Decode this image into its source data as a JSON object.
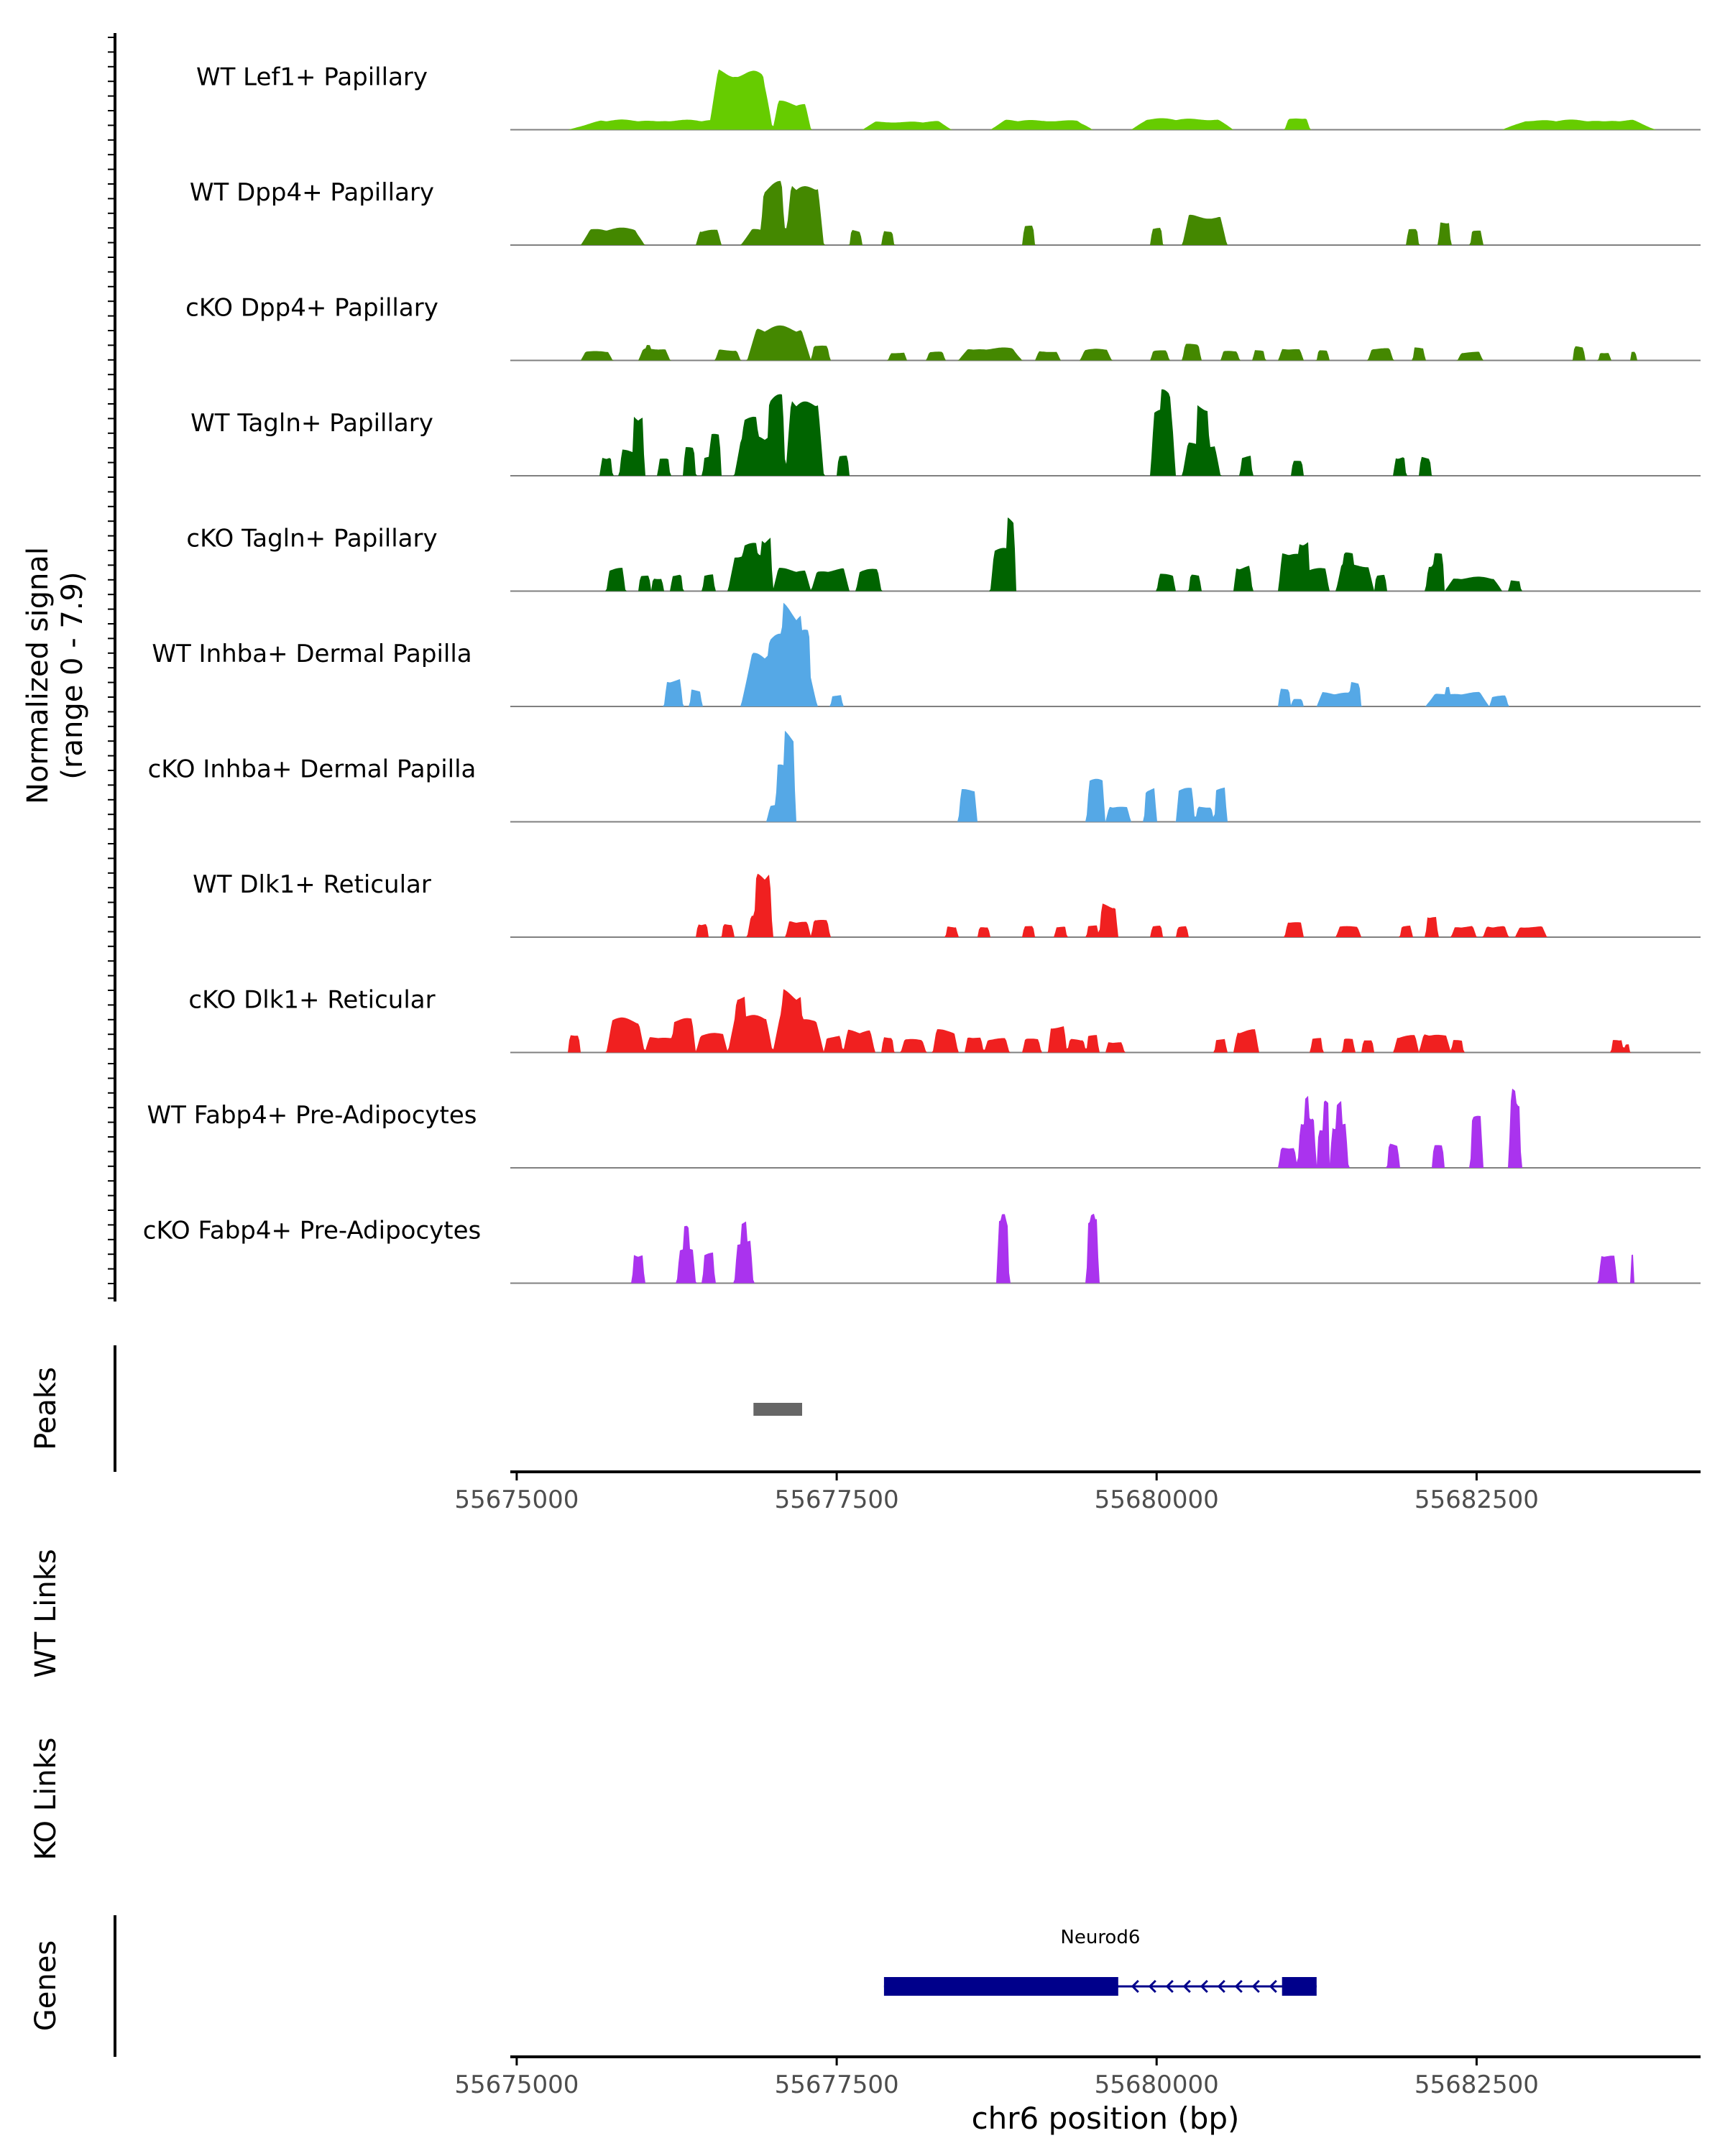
{
  "chart_data": {
    "type": "area",
    "genomic_range": [
      55674950,
      55684250
    ],
    "x_axis_ticks": [
      55675000,
      55677500,
      55680000,
      55682500
    ],
    "x_axis_tick_labels": [
      "55675000",
      "55677500",
      "55680000",
      "55682500"
    ],
    "xlabel": "chr6 position (bp)",
    "ylabel_line1": "Normalized signal",
    "ylabel_line2": "(range 0 - 7.9)",
    "signal_range": [
      0,
      7.9
    ],
    "section_labels": {
      "peaks": "Peaks",
      "wt_links": "WT Links",
      "ko_links": "KO Links",
      "genes": "Genes"
    },
    "series": [
      {
        "name": "WT Lef1+ Papillary",
        "color": "#66cc00",
        "regions": [
          [
            55675400,
            55677100,
            0.35
          ],
          [
            55677700,
            55678400,
            0.3
          ],
          [
            55678700,
            55679500,
            0.35
          ],
          [
            55679800,
            55680600,
            0.4
          ],
          [
            55681000,
            55681200,
            0.45
          ],
          [
            55682700,
            55683900,
            0.35
          ]
        ],
        "peaks": [
          [
            55676500,
            55677000,
            2.2
          ],
          [
            55677000,
            55677300,
            1.0
          ]
        ]
      },
      {
        "name": "WT Dpp4+ Papillary",
        "color": "#448800",
        "regions": [
          [
            55675500,
            55676000,
            0.6
          ],
          [
            55676400,
            55676600,
            0.55
          ],
          [
            55676750,
            55677350,
            0.6
          ],
          [
            55677600,
            55677700,
            0.55
          ],
          [
            55677850,
            55677950,
            0.55
          ],
          [
            55678950,
            55679050,
            0.7
          ],
          [
            55679950,
            55680050,
            0.6
          ],
          [
            55680200,
            55680550,
            1.1
          ],
          [
            55681950,
            55682050,
            0.55
          ],
          [
            55682200,
            55682300,
            0.9
          ],
          [
            55682450,
            55682550,
            0.5
          ]
        ],
        "peaks": [
          [
            55676900,
            55677100,
            2.2
          ],
          [
            55677100,
            55677400,
            2.3
          ]
        ]
      },
      {
        "name": "cKO Dpp4+ Papillary",
        "color": "#448800",
        "regions": [
          [
            55675500,
            55675750,
            0.35
          ],
          [
            55675950,
            55676200,
            0.45
          ],
          [
            55676000,
            55676050,
            0.6
          ],
          [
            55676550,
            55676750,
            0.4
          ],
          [
            55676800,
            55677200,
            0.7
          ],
          [
            55677300,
            55677450,
            0.6
          ],
          [
            55677900,
            55678050,
            0.3
          ],
          [
            55678200,
            55678350,
            0.3
          ],
          [
            55678450,
            55678950,
            0.45
          ],
          [
            55679050,
            55679250,
            0.35
          ],
          [
            55679400,
            55679650,
            0.4
          ],
          [
            55679950,
            55680100,
            0.35
          ],
          [
            55680200,
            55680350,
            0.6
          ],
          [
            55680500,
            55680650,
            0.35
          ],
          [
            55680750,
            55680850,
            0.35
          ],
          [
            55680950,
            55681150,
            0.45
          ],
          [
            55681250,
            55681350,
            0.35
          ],
          [
            55681650,
            55681850,
            0.45
          ],
          [
            55682000,
            55682100,
            0.45
          ],
          [
            55682350,
            55682550,
            0.3
          ],
          [
            55683250,
            55683350,
            0.5
          ],
          [
            55683450,
            55683550,
            0.3
          ],
          [
            55683700,
            55683750,
            0.3
          ]
        ],
        "peaks": [
          [
            55676800,
            55677300,
            1.2
          ]
        ]
      },
      {
        "name": "WT Tagln+ Papillary",
        "color": "#006400",
        "regions": [
          [
            55675650,
            55675750,
            0.7
          ],
          [
            55675800,
            55675950,
            0.9
          ],
          [
            55676100,
            55676200,
            0.7
          ],
          [
            55676300,
            55676400,
            1.0
          ],
          [
            55676450,
            55676550,
            0.7
          ],
          [
            55676700,
            55677050,
            1.5
          ],
          [
            55677200,
            55677400,
            1.6
          ],
          [
            55677500,
            55677600,
            0.7
          ],
          [
            55679950,
            55680150,
            2.3
          ],
          [
            55680200,
            55680500,
            1.2
          ],
          [
            55680650,
            55680750,
            0.7
          ],
          [
            55681050,
            55681150,
            0.6
          ],
          [
            55681850,
            55681950,
            0.7
          ],
          [
            55682050,
            55682150,
            0.7
          ]
        ],
        "peaks": [
          [
            55675900,
            55676000,
            2.3
          ],
          [
            55676500,
            55676600,
            1.5
          ],
          [
            55676750,
            55676900,
            2.2
          ],
          [
            55676950,
            55677100,
            2.8
          ],
          [
            55677100,
            55677400,
            2.9
          ],
          [
            55680020,
            55680120,
            3.0
          ],
          [
            55680300,
            55680420,
            2.7
          ]
        ]
      },
      {
        "name": "cKO Tagln+ Papillary",
        "color": "#006400",
        "regions": [
          [
            55675700,
            55675850,
            0.8
          ],
          [
            55675950,
            55676050,
            0.6
          ],
          [
            55676050,
            55676150,
            0.5
          ],
          [
            55676200,
            55676300,
            0.6
          ],
          [
            55676450,
            55676550,
            0.6
          ],
          [
            55676650,
            55677000,
            1.4
          ],
          [
            55677000,
            55677300,
            0.8
          ],
          [
            55677300,
            55677600,
            0.8
          ],
          [
            55677650,
            55677850,
            0.8
          ],
          [
            55678700,
            55678900,
            1.5
          ],
          [
            55680000,
            55680150,
            0.6
          ],
          [
            55680250,
            55680350,
            0.6
          ],
          [
            55680600,
            55680750,
            0.9
          ],
          [
            55680950,
            55681150,
            1.5
          ],
          [
            55681150,
            55681350,
            0.8
          ],
          [
            55681400,
            55681700,
            1.0
          ],
          [
            55681700,
            55681800,
            0.6
          ],
          [
            55682100,
            55682250,
            1.0
          ],
          [
            55682250,
            55682700,
            0.5
          ],
          [
            55682750,
            55682850,
            0.4
          ]
        ],
        "peaks": [
          [
            55676750,
            55676900,
            1.8
          ],
          [
            55676900,
            55677000,
            2.0
          ],
          [
            55678820,
            55678900,
            2.6
          ],
          [
            55681100,
            55681200,
            1.9
          ],
          [
            55681450,
            55681550,
            1.4
          ],
          [
            55682150,
            55682250,
            1.5
          ]
        ]
      },
      {
        "name": "WT Inhba+ Dermal Papilla",
        "color": "#55a8e6",
        "regions": [
          [
            55676150,
            55676300,
            1.0
          ],
          [
            55676350,
            55676450,
            0.6
          ],
          [
            55676750,
            55677350,
            2.0
          ],
          [
            55677450,
            55677550,
            0.4
          ],
          [
            55680950,
            55681050,
            0.7
          ],
          [
            55681050,
            55681150,
            0.3
          ],
          [
            55681250,
            55681550,
            0.5
          ],
          [
            55681500,
            55681600,
            0.9
          ],
          [
            55682100,
            55682600,
            0.5
          ],
          [
            55682250,
            55682300,
            0.8
          ],
          [
            55682600,
            55682750,
            0.4
          ]
        ],
        "peaks": [
          [
            55677050,
            55677250,
            3.6
          ],
          [
            55676950,
            55677100,
            2.5
          ],
          [
            55677200,
            55677300,
            3.0
          ]
        ]
      },
      {
        "name": "cKO Inhba+ Dermal Papilla",
        "color": "#55a8e6",
        "regions": [
          [
            55676950,
            55677150,
            1.2
          ],
          [
            55678450,
            55678600,
            2.6
          ],
          [
            55679450,
            55679600,
            3.0
          ],
          [
            55679600,
            55679800,
            1.2
          ],
          [
            55679900,
            55680000,
            2.5
          ],
          [
            55680150,
            55680300,
            2.5
          ],
          [
            55680300,
            55680450,
            1.2
          ],
          [
            55680450,
            55680550,
            2.6
          ]
        ],
        "peaks": [
          [
            55677080,
            55677180,
            6.5
          ],
          [
            55677020,
            55677120,
            4.0
          ]
        ]
      },
      {
        "name": "WT Dlk1+ Reticular",
        "color": "#f02020",
        "regions": [
          [
            55676400,
            55676500,
            0.5
          ],
          [
            55676600,
            55676700,
            0.5
          ],
          [
            55676800,
            55677000,
            0.8
          ],
          [
            55677100,
            55677300,
            0.6
          ],
          [
            55677300,
            55677450,
            0.7
          ],
          [
            55678350,
            55678450,
            0.4
          ],
          [
            55678600,
            55678700,
            0.4
          ],
          [
            55678950,
            55679050,
            0.4
          ],
          [
            55679200,
            55679300,
            0.4
          ],
          [
            55679450,
            55679550,
            0.4
          ],
          [
            55679550,
            55679700,
            1.2
          ],
          [
            55679950,
            55680050,
            0.4
          ],
          [
            55680150,
            55680250,
            0.4
          ],
          [
            55681000,
            55681150,
            0.6
          ],
          [
            55681400,
            55681600,
            0.4
          ],
          [
            55681900,
            55682000,
            0.4
          ],
          [
            55682100,
            55682200,
            0.8
          ],
          [
            55682300,
            55682500,
            0.4
          ],
          [
            55682550,
            55682750,
            0.4
          ],
          [
            55682800,
            55683050,
            0.4
          ]
        ],
        "peaks": [
          [
            55676850,
            55677000,
            2.4
          ]
        ]
      },
      {
        "name": "cKO Dlk1+ Reticular",
        "color": "#f02020",
        "regions": [
          [
            55675400,
            55675500,
            0.7
          ],
          [
            55675700,
            55676000,
            1.2
          ],
          [
            55676000,
            55676250,
            0.6
          ],
          [
            55676200,
            55676400,
            1.2
          ],
          [
            55676400,
            55676650,
            0.7
          ],
          [
            55676650,
            55677000,
            1.4
          ],
          [
            55677000,
            55677400,
            1.3
          ],
          [
            55677400,
            55677550,
            0.6
          ],
          [
            55677550,
            55677800,
            0.8
          ],
          [
            55677850,
            55677950,
            0.6
          ],
          [
            55678000,
            55678200,
            0.5
          ],
          [
            55678250,
            55678450,
            0.8
          ],
          [
            55678500,
            55678650,
            0.6
          ],
          [
            55678650,
            55678850,
            0.5
          ],
          [
            55678950,
            55679100,
            0.5
          ],
          [
            55679150,
            55679300,
            1.0
          ],
          [
            55679300,
            55679450,
            0.5
          ],
          [
            55679450,
            55679550,
            0.6
          ],
          [
            55679600,
            55679750,
            0.4
          ],
          [
            55680450,
            55680550,
            0.5
          ],
          [
            55680600,
            55680800,
            0.8
          ],
          [
            55681200,
            55681300,
            0.5
          ],
          [
            55681450,
            55681550,
            0.5
          ],
          [
            55681600,
            55681700,
            0.5
          ],
          [
            55681850,
            55682050,
            0.6
          ],
          [
            55682050,
            55682300,
            0.7
          ],
          [
            55682300,
            55682400,
            0.5
          ],
          [
            55683550,
            55683650,
            0.5
          ],
          [
            55683650,
            55683700,
            0.3
          ]
        ],
        "peaks": [
          [
            55676700,
            55676800,
            2.2
          ],
          [
            55677050,
            55677250,
            2.2
          ]
        ]
      },
      {
        "name": "WT Fabp4+ Pre-Adipocytes",
        "color": "#aa33ee",
        "regions": [
          [
            55680950,
            55681100,
            0.8
          ],
          [
            55681100,
            55681250,
            1.8
          ],
          [
            55681250,
            55681350,
            1.3
          ],
          [
            55681350,
            55681500,
            1.6
          ],
          [
            55681800,
            55681900,
            0.9
          ],
          [
            55682150,
            55682250,
            0.9
          ],
          [
            55682450,
            55682550,
            1.8
          ],
          [
            55682750,
            55682850,
            2.5
          ]
        ],
        "peaks": [
          [
            55681150,
            55681200,
            2.8
          ],
          [
            55681300,
            55681350,
            2.4
          ],
          [
            55681400,
            55681450,
            2.5
          ],
          [
            55682760,
            55682820,
            3.0
          ]
        ]
      },
      {
        "name": "cKO Fabp4+ Pre-Adipocytes",
        "color": "#aa33ee",
        "regions": [
          [
            55675900,
            55676000,
            1.1
          ],
          [
            55676250,
            55676400,
            1.2
          ],
          [
            55676450,
            55676550,
            1.1
          ],
          [
            55676700,
            55676850,
            1.6
          ],
          [
            55678750,
            55678850,
            2.2
          ],
          [
            55679450,
            55679550,
            2.2
          ],
          [
            55683450,
            55683600,
            1.1
          ],
          [
            55683700,
            55683730,
            1.0
          ]
        ],
        "peaks": [
          [
            55676300,
            55676350,
            2.0
          ],
          [
            55676750,
            55676800,
            2.4
          ],
          [
            55678780,
            55678820,
            2.4
          ],
          [
            55679480,
            55679520,
            2.4
          ]
        ]
      }
    ],
    "peaks_track": [
      {
        "start": 55676850,
        "end": 55677230
      }
    ],
    "genes": [
      {
        "name": "Neurod6",
        "start": 55677870,
        "end": 55681250,
        "strand": "-",
        "thick_segments": [
          [
            55677870,
            55679700
          ],
          [
            55680980,
            55681250
          ]
        ]
      }
    ]
  }
}
